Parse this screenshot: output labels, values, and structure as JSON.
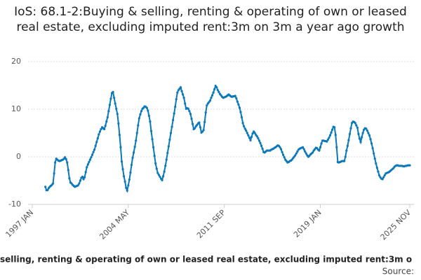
{
  "chart_data": {
    "type": "line",
    "title": "IoS: 68.1-2:Buying & selling, renting & operating of own or leased real estate, excluding imputed rent:3m on 3m a year ago growth",
    "x_label": "selling, renting & operating of own or leased real estate, excluding imputed rent:3m o",
    "source": "Source:",
    "ylim": [
      -10,
      20
    ],
    "yticks": [
      -10,
      0,
      10,
      20
    ],
    "grid": true,
    "categories": [
      "1997 JAN",
      null,
      null,
      null,
      null,
      null,
      null,
      null,
      null,
      null,
      null,
      null,
      null,
      null,
      null,
      null,
      null,
      null,
      null,
      null,
      null,
      null,
      null,
      null,
      null,
      null,
      null,
      null,
      null,
      null,
      null,
      null,
      null,
      null,
      null,
      null,
      null,
      null,
      null,
      null,
      null,
      null,
      null,
      null,
      null,
      null,
      null,
      null,
      null,
      null,
      null,
      null,
      null,
      null,
      null,
      null,
      null,
      null,
      null,
      null,
      null,
      null,
      null,
      null,
      null,
      null,
      null,
      null,
      null,
      null,
      null,
      null,
      null,
      null,
      null,
      null,
      null,
      null,
      null,
      null,
      null,
      null,
      null,
      null,
      null,
      null,
      null,
      null,
      "2004 MAY",
      null,
      null,
      null,
      null,
      null,
      null,
      null,
      null,
      null,
      null,
      null,
      null,
      null,
      null,
      null,
      null,
      null,
      null,
      null,
      null,
      null,
      null,
      null,
      null,
      null,
      null,
      null,
      null,
      null,
      null,
      null,
      null,
      null,
      null,
      null,
      null,
      null,
      null,
      null,
      null,
      null,
      null,
      null,
      null,
      null,
      null,
      null,
      null,
      null,
      null,
      null,
      null,
      null,
      null,
      null,
      null,
      null,
      null,
      null,
      null,
      null,
      null,
      null,
      null,
      null,
      null,
      null,
      null,
      null,
      null,
      null,
      null,
      null,
      null,
      null,
      null,
      null,
      null,
      null,
      null,
      null,
      null,
      null,
      null,
      null,
      null,
      null,
      "2011 SEP",
      null,
      null,
      null,
      null,
      null,
      null,
      null,
      null,
      null,
      null,
      null,
      null,
      null,
      null,
      null,
      null,
      null,
      null,
      null,
      null,
      null,
      null,
      null,
      null,
      null,
      null,
      null,
      null,
      null,
      null,
      null,
      null,
      null,
      null,
      null,
      null,
      null,
      null,
      null,
      null,
      null,
      null,
      null,
      null,
      null,
      null,
      null,
      null,
      null,
      null,
      null,
      null,
      null,
      null,
      null,
      null,
      null,
      null,
      null,
      null,
      null,
      null,
      null,
      null,
      null,
      null,
      null,
      null,
      null,
      null,
      null,
      null,
      null,
      null,
      null,
      null,
      null,
      null,
      null,
      null,
      null,
      null,
      null,
      null,
      null,
      null,
      null,
      "2019 JAN",
      null,
      null,
      null,
      null,
      null,
      null,
      null,
      null,
      null,
      null,
      null,
      null,
      null,
      null,
      null,
      null,
      null,
      null,
      null,
      null,
      null,
      null,
      null,
      null,
      null,
      null,
      null,
      null,
      null,
      null,
      null,
      null,
      null,
      null,
      null,
      null,
      null,
      null,
      null,
      null,
      null,
      null,
      null,
      null,
      null,
      null,
      null,
      null,
      null,
      null,
      null,
      null,
      null,
      null,
      null,
      null,
      null,
      null,
      null,
      null,
      null,
      null,
      null,
      null,
      null,
      null,
      null,
      null,
      null,
      null,
      null,
      null,
      null,
      null,
      null,
      null,
      null,
      null,
      null,
      null,
      null,
      "2025 NOV"
    ],
    "series": [
      {
        "color": "#0a78b9",
        "values": [
          null,
          null,
          null,
          null,
          null,
          null,
          null,
          null,
          null,
          null,
          null,
          null,
          -6.3,
          -7.0,
          -7.0,
          -6.6,
          -6.3,
          -6.1,
          -5.9,
          -5.6,
          -3.5,
          -1.2,
          -0.4,
          -0.6,
          -0.8,
          -0.9,
          -0.8,
          -0.7,
          -0.6,
          -0.4,
          -0.1,
          -0.5,
          -1.2,
          -2.8,
          -4.5,
          -5.4,
          -5.6,
          -5.9,
          -6.1,
          -6.3,
          -6.2,
          -6.1,
          -6.0,
          -5.6,
          -5.0,
          -4.4,
          -4.2,
          -4.7,
          -4.3,
          -3.2,
          -2.2,
          -1.6,
          -1.1,
          -0.6,
          -0.1,
          0.4,
          1.0,
          1.5,
          2.3,
          3.1,
          3.9,
          4.7,
          5.3,
          5.8,
          6.2,
          6.0,
          5.8,
          6.5,
          7.4,
          8.3,
          9.6,
          10.9,
          12.2,
          13.4,
          13.6,
          12.4,
          11.2,
          10.1,
          9.0,
          7.0,
          4.6,
          2.0,
          -1.0,
          -2.6,
          -4.1,
          -5.2,
          -6.5,
          -7.1,
          -6.0,
          -4.8,
          -3.3,
          -1.7,
          -0.2,
          0.9,
          2.1,
          3.4,
          5.0,
          6.6,
          8.1,
          8.9,
          9.6,
          10.1,
          10.3,
          10.6,
          10.5,
          10.3,
          9.7,
          8.6,
          7.4,
          5.4,
          3.7,
          2.0,
          0.2,
          -1.4,
          -2.5,
          -3.4,
          -3.8,
          -4.2,
          -4.6,
          -4.9,
          -4.1,
          -3.1,
          -1.9,
          -0.6,
          0.8,
          2.2,
          3.6,
          5.0,
          6.3,
          7.7,
          9.1,
          10.5,
          12.1,
          13.5,
          14.0,
          14.3,
          14.6,
          13.8,
          13.1,
          12.4,
          11.2,
          10.1,
          10.2,
          10.1,
          9.6,
          9.0,
          8.0,
          6.9,
          5.8,
          6.0,
          6.4,
          6.7,
          7.0,
          7.2,
          6.2,
          5.1,
          5.3,
          5.6,
          7.3,
          9.3,
          10.8,
          11.2,
          11.5,
          11.8,
          12.4,
          12.9,
          13.5,
          14.2,
          14.9,
          14.6,
          14.0,
          13.6,
          13.2,
          12.9,
          12.6,
          12.4,
          12.5,
          12.6,
          12.7,
          12.9,
          13.1,
          12.9,
          12.7,
          12.6,
          12.7,
          12.7,
          12.8,
          12.3,
          11.6,
          11.0,
          10.3,
          9.4,
          8.3,
          7.1,
          6.4,
          5.9,
          5.5,
          5.0,
          4.5,
          4.0,
          3.5,
          4.2,
          4.9,
          5.3,
          5.0,
          4.6,
          4.3,
          3.9,
          3.4,
          2.9,
          2.3,
          1.7,
          1.0,
          0.9,
          1.1,
          1.3,
          1.3,
          1.3,
          1.3,
          1.5,
          1.6,
          1.7,
          1.9,
          2.0,
          2.2,
          2.4,
          2.3,
          2.0,
          1.6,
          1.0,
          0.4,
          -0.1,
          -0.6,
          -0.9,
          -1.2,
          -1.1,
          -0.9,
          -0.8,
          -0.6,
          -0.3,
          0.0,
          0.3,
          0.7,
          1.1,
          1.5,
          1.7,
          1.8,
          1.9,
          2.0,
          1.6,
          1.1,
          0.7,
          0.3,
          0.0,
          0.2,
          0.5,
          0.7,
          0.9,
          1.3,
          1.6,
          1.9,
          1.8,
          1.5,
          1.3,
          2.0,
          2.8,
          3.4,
          3.4,
          3.3,
          3.3,
          3.2,
          3.6,
          4.0,
          4.5,
          5.1,
          5.7,
          6.3,
          6.2,
          4.6,
          2.0,
          -1.1,
          -1.2,
          -1.1,
          -1.0,
          -0.9,
          -0.9,
          -0.9,
          0.0,
          1.3,
          2.3,
          3.5,
          4.8,
          6.0,
          7.1,
          7.4,
          7.3,
          7.1,
          6.6,
          6.1,
          4.8,
          3.8,
          3.1,
          4.1,
          5.0,
          5.7,
          6.0,
          5.9,
          5.5,
          5.0,
          4.5,
          3.7,
          2.8,
          1.8,
          0.7,
          -0.4,
          -1.4,
          -2.3,
          -3.1,
          -3.9,
          -4.3,
          -4.6,
          -4.7,
          -4.3,
          -3.9,
          -3.5,
          -3.4,
          -3.3,
          -3.2,
          -3.0,
          -2.8,
          -2.6,
          -2.4,
          -2.1,
          -1.9,
          -1.8,
          -1.8,
          -1.9,
          -1.9,
          -1.9,
          -1.9,
          -2.0,
          -2.0,
          -1.9,
          -1.9,
          -1.8,
          -1.8,
          -1.8
        ]
      }
    ]
  }
}
